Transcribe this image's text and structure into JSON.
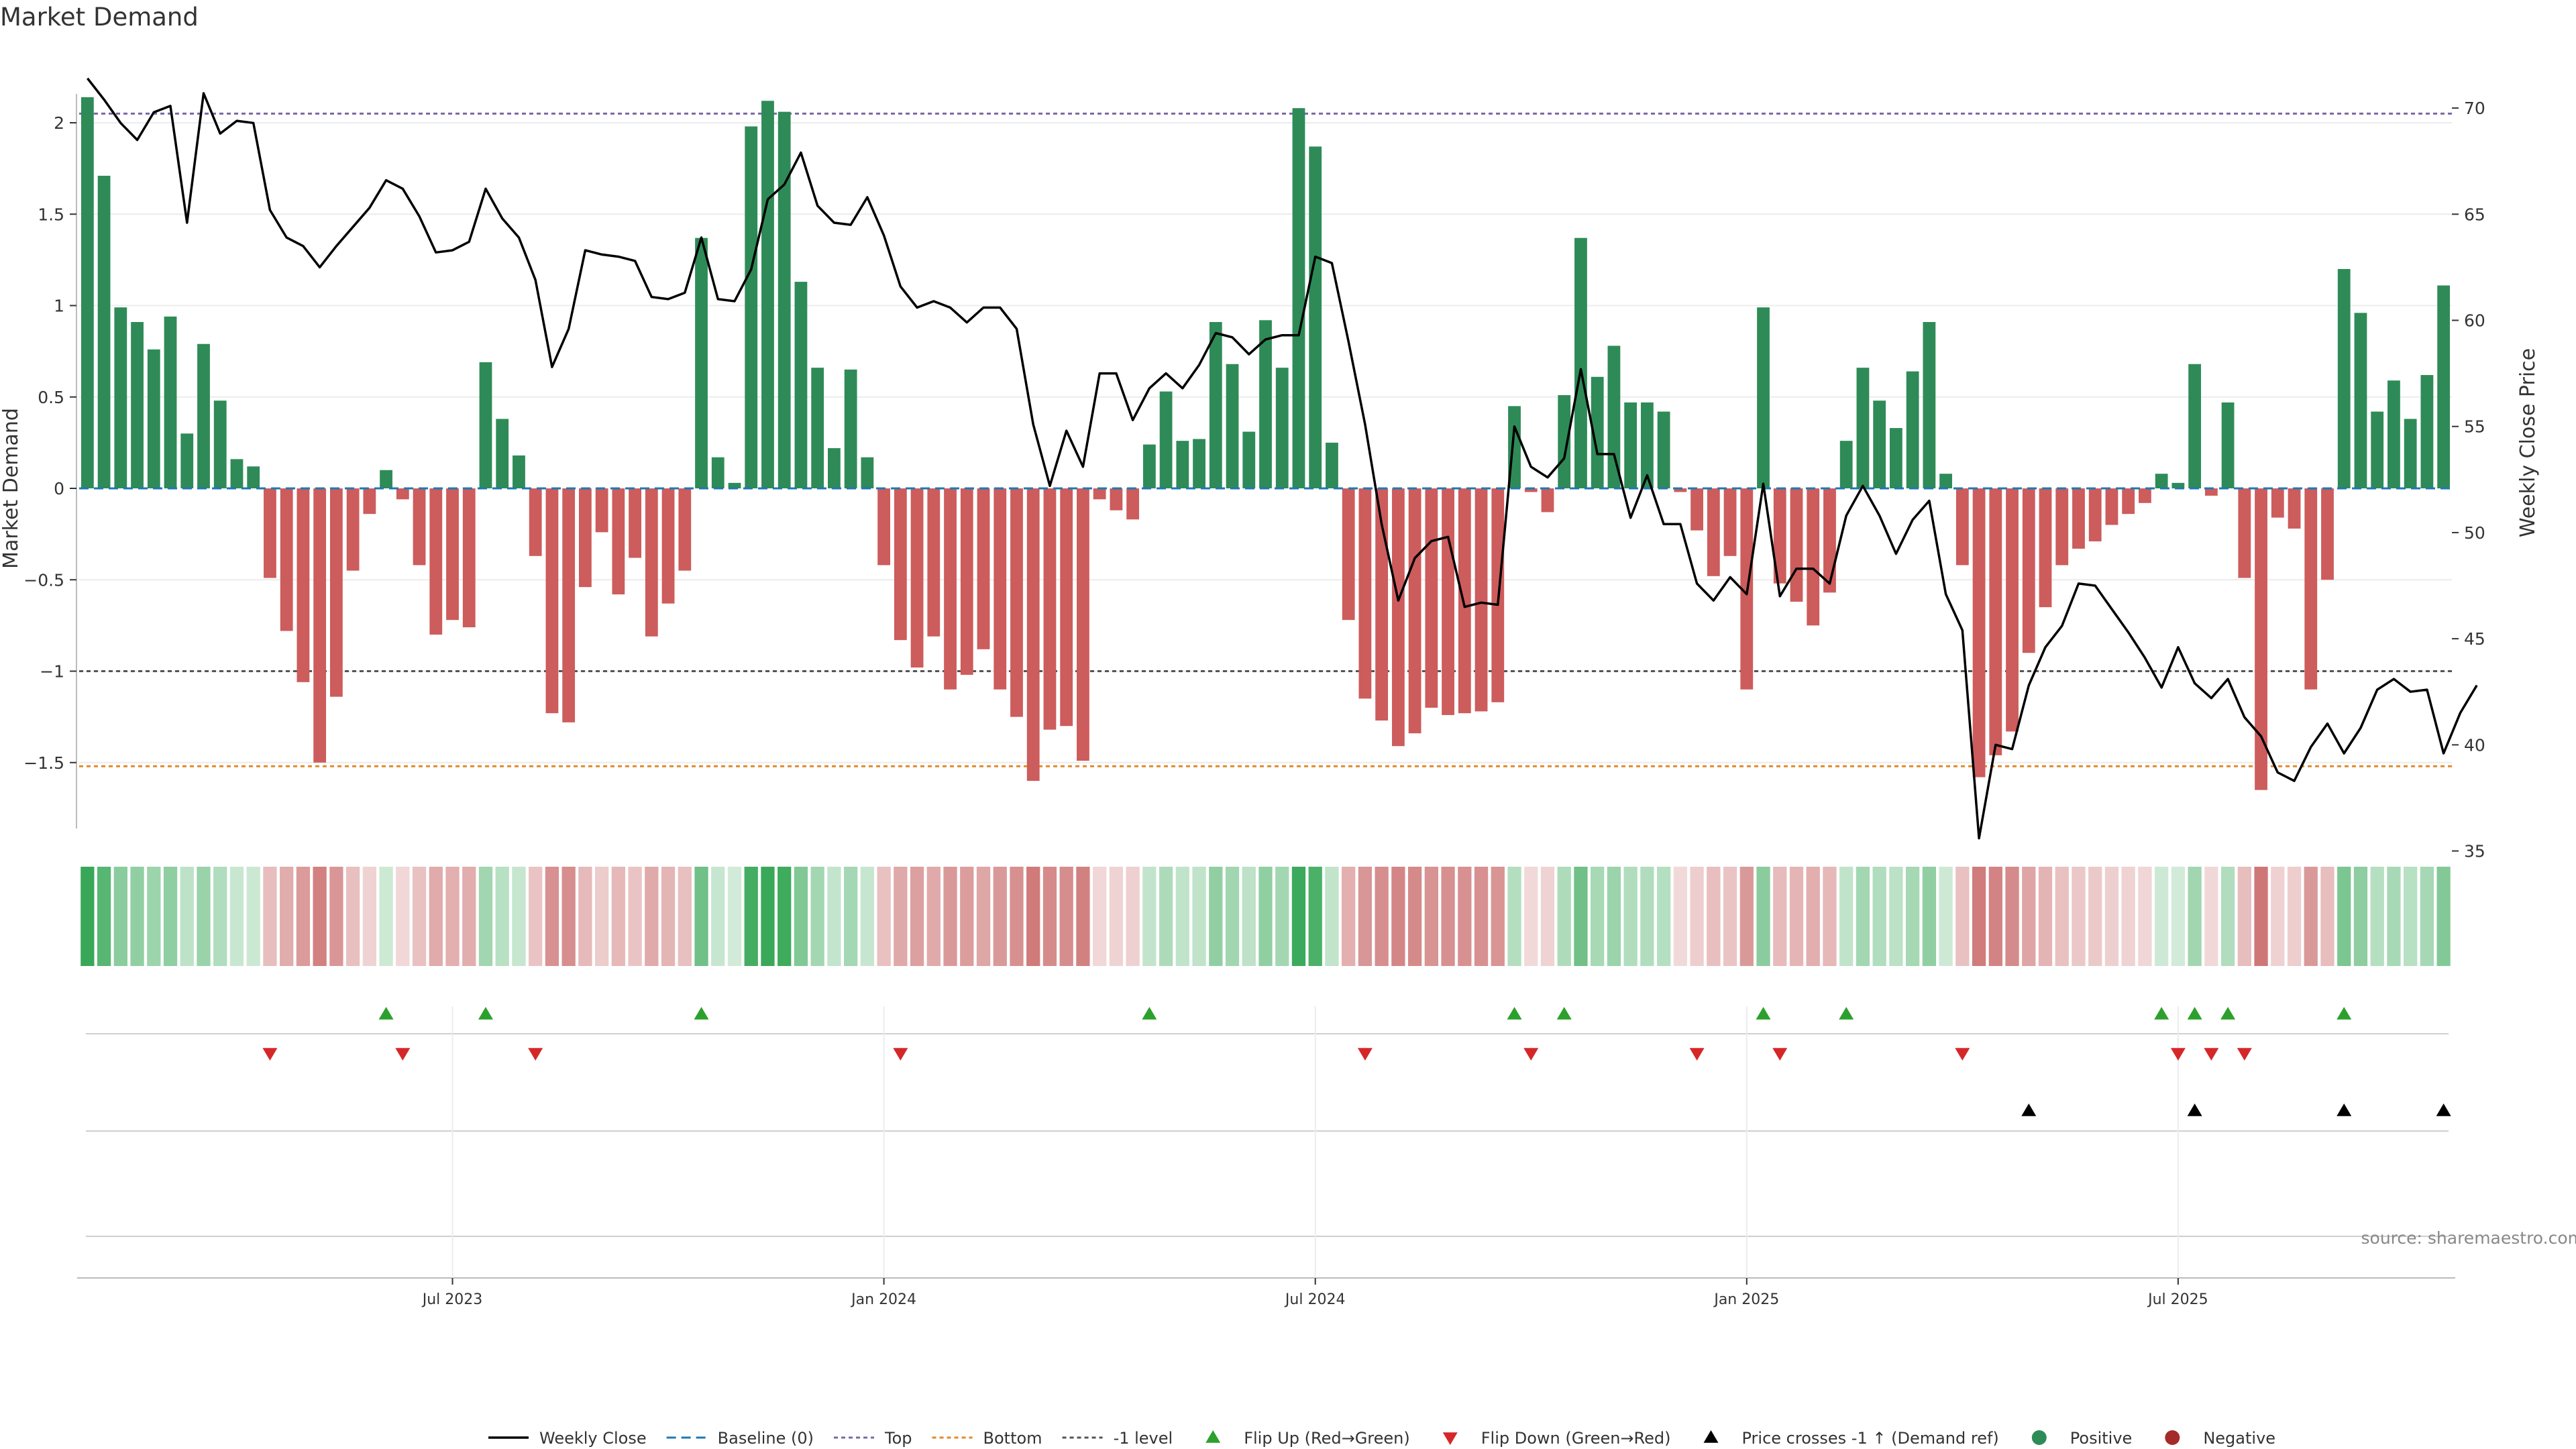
{
  "page": {
    "title": "Market Demand",
    "source": "source: sharemaestro.com"
  },
  "colors": {
    "positive": "#2e8b57",
    "negative": "#cd5c5c",
    "price": "#000000",
    "baseline": "#1f77b4",
    "top": "#7b68a6",
    "bottom": "#e08a2a",
    "minus_one": "#555555",
    "flip_up": "#2ca02c",
    "flip_down": "#d62728",
    "cross": "#000000"
  },
  "chart_data": {
    "type": "bar",
    "title": "Market Demand",
    "ylabel": "Market Demand",
    "y2label": "Weekly Close Price",
    "ylim": [
      -1.85,
      2.2
    ],
    "y2lim": [
      33.5,
      72.5
    ],
    "yticks": [
      {
        "v": 2,
        "t": "2"
      },
      {
        "v": 1.5,
        "t": "1.5"
      },
      {
        "v": 1,
        "t": "1"
      },
      {
        "v": 0.5,
        "t": "0.5"
      },
      {
        "v": 0,
        "t": "0"
      },
      {
        "v": -0.5,
        "t": "−0.5"
      },
      {
        "v": -1,
        "t": "−1"
      },
      {
        "v": -1.5,
        "t": "−1.5"
      }
    ],
    "y2ticks": [
      70,
      65,
      60,
      55,
      50,
      45,
      40,
      35
    ],
    "date_ticks": [
      {
        "i": 22,
        "label": "Jul 2023"
      },
      {
        "i": 48,
        "label": "Jan 2024"
      },
      {
        "i": 74,
        "label": "Jul 2024"
      },
      {
        "i": 100,
        "label": "Jan 2025"
      },
      {
        "i": 126,
        "label": "Jul 2025"
      }
    ],
    "levels": {
      "top": 2.05,
      "bottom": -1.52,
      "minus_one": -1.0,
      "baseline": 0
    },
    "demand": [
      2.14,
      1.71,
      0.99,
      0.91,
      0.76,
      0.94,
      0.3,
      0.79,
      0.48,
      0.16,
      0.12,
      -0.49,
      -0.78,
      -1.06,
      -1.5,
      -1.14,
      -0.45,
      -0.14,
      0.1,
      -0.06,
      -0.42,
      -0.8,
      -0.72,
      -0.76,
      0.69,
      0.38,
      0.18,
      -0.37,
      -1.23,
      -1.28,
      -0.54,
      -0.24,
      -0.58,
      -0.38,
      -0.81,
      -0.63,
      -0.45,
      1.37,
      0.17,
      0.03,
      1.98,
      2.12,
      2.06,
      1.13,
      0.66,
      0.22,
      0.65,
      0.17,
      -0.42,
      -0.83,
      -0.98,
      -0.81,
      -1.1,
      -1.02,
      -0.88,
      -1.1,
      -1.25,
      -1.6,
      -1.32,
      -1.3,
      -1.49,
      -0.06,
      -0.12,
      -0.17,
      0.24,
      0.53,
      0.26,
      0.27,
      0.91,
      0.68,
      0.31,
      0.92,
      0.66,
      2.08,
      1.87,
      0.25,
      -0.72,
      -1.15,
      -1.27,
      -1.41,
      -1.34,
      -1.2,
      -1.24,
      -1.23,
      -1.22,
      -1.17,
      0.45,
      -0.02,
      -0.13,
      0.51,
      1.37,
      0.61,
      0.78,
      0.47,
      0.47,
      0.42,
      -0.02,
      -0.23,
      -0.48,
      -0.37,
      -1.1,
      0.99,
      -0.52,
      -0.62,
      -0.75,
      -0.57,
      0.26,
      0.66,
      0.48,
      0.33,
      0.64,
      0.91,
      0.08,
      -0.42,
      -1.58,
      -1.46,
      -1.33,
      -0.9,
      -0.65,
      -0.42,
      -0.33,
      -0.29,
      -0.2,
      -0.14,
      -0.08,
      0.08,
      0.03,
      0.68,
      -0.04,
      0.47,
      -0.49,
      -1.65,
      -0.16,
      -0.22,
      -1.1,
      -0.5,
      1.2,
      0.96,
      0.42,
      0.59,
      0.38,
      0.62,
      1.11
    ],
    "close": [
      71.4,
      70.4,
      69.3,
      68.5,
      69.8,
      70.1,
      64.6,
      70.7,
      68.8,
      69.4,
      69.3,
      65.2,
      63.9,
      63.5,
      62.5,
      63.5,
      64.4,
      65.3,
      66.6,
      66.2,
      64.9,
      63.2,
      63.3,
      63.7,
      66.2,
      64.8,
      63.9,
      61.9,
      57.8,
      59.6,
      63.3,
      63.1,
      63.0,
      62.8,
      61.1,
      61.0,
      61.3,
      63.9,
      61.0,
      60.9,
      62.4,
      65.7,
      66.4,
      67.9,
      65.4,
      64.6,
      64.5,
      65.8,
      64.0,
      61.6,
      60.6,
      60.9,
      60.6,
      59.9,
      60.6,
      60.6,
      59.6,
      55.1,
      52.2,
      54.8,
      53.1,
      57.5,
      57.5,
      55.3,
      56.8,
      57.5,
      56.8,
      57.9,
      59.4,
      59.2,
      58.4,
      59.1,
      59.3,
      59.3,
      63.0,
      62.7,
      59.0,
      55.1,
      50.4,
      46.8,
      48.8,
      49.6,
      49.8,
      46.5,
      46.7,
      46.6,
      55.0,
      53.1,
      52.6,
      53.5,
      57.7,
      53.7,
      53.7,
      50.7,
      52.7,
      50.4,
      50.4,
      47.6,
      46.8,
      47.9,
      47.1,
      52.3,
      47.0,
      48.3,
      48.3,
      47.6,
      50.8,
      52.2,
      50.8,
      49.0,
      50.6,
      51.5,
      47.1,
      45.4,
      35.6,
      40.0,
      39.8,
      42.8,
      44.6,
      45.6,
      47.6,
      47.5,
      46.4,
      45.3,
      44.1,
      42.7,
      44.6,
      42.9,
      42.2,
      43.1,
      41.3,
      40.4,
      38.7,
      38.3,
      39.9,
      41.0,
      39.6,
      40.8,
      42.6,
      43.1,
      42.5,
      42.6,
      39.6,
      41.5,
      42.8
    ],
    "flip_up": [
      18,
      24,
      37,
      64,
      86,
      89,
      101,
      106,
      125,
      127,
      129,
      136
    ],
    "flip_down": [
      11,
      19,
      27,
      49,
      77,
      87,
      97,
      102,
      113,
      126,
      128,
      130
    ],
    "price_cross_up": [
      117,
      127,
      136,
      142
    ]
  },
  "legend": [
    {
      "label": "Weekly Close",
      "kind": "line",
      "color": "#000000"
    },
    {
      "label": "Baseline (0)",
      "kind": "dash",
      "color": "#1f77b4"
    },
    {
      "label": "Top",
      "kind": "dot",
      "color": "#7b68a6"
    },
    {
      "label": "Bottom",
      "kind": "dot",
      "color": "#e08a2a"
    },
    {
      "label": "-1 level",
      "kind": "dot",
      "color": "#555555"
    },
    {
      "label": "Flip Up (Red→Green)",
      "kind": "tri-up",
      "color": "#2ca02c"
    },
    {
      "label": "Flip Down (Green→Red)",
      "kind": "tri-down",
      "color": "#d62728"
    },
    {
      "label": "Price crosses -1 ↑ (Demand ref)",
      "kind": "tri-up",
      "color": "#000000"
    },
    {
      "label": "Positive",
      "kind": "circle",
      "color": "#2e8b57"
    },
    {
      "label": "Negative",
      "kind": "circle",
      "color": "#a52a2a"
    }
  ]
}
